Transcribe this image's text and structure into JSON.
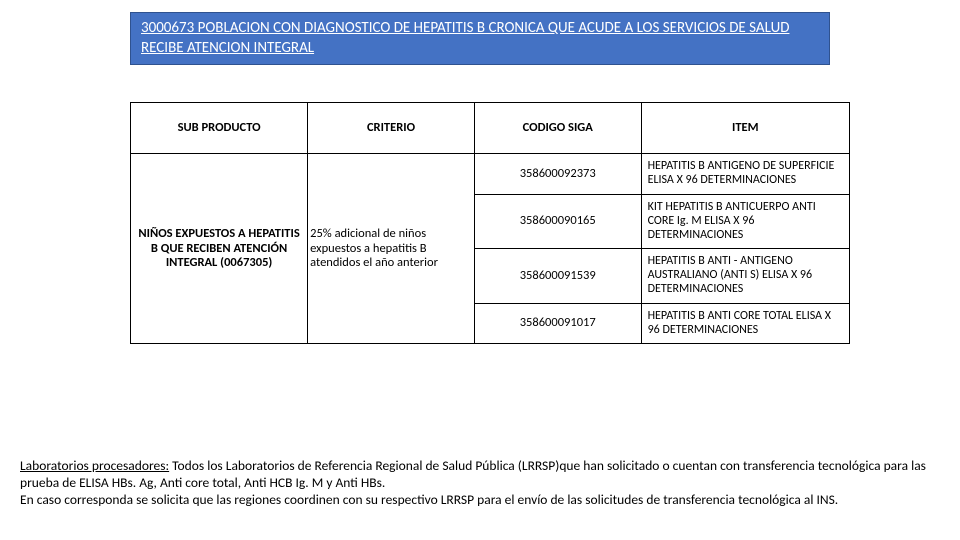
{
  "header": {
    "text": "3000673 POBLACION CON DIAGNOSTICO DE HEPATITIS B CRONICA QUE ACUDE A LOS SERVICIOS DE SALUD RECIBE ATENCION INTEGRAL",
    "background_color": "#4472c4",
    "text_color": "#ffffff"
  },
  "table": {
    "columns": [
      "SUB PRODUCTO",
      "CRITERIO",
      "CODIGO SIGA",
      "ITEM"
    ],
    "sub_producto": "NIÑOS EXPUESTOS A HEPATITIS B QUE RECIBEN ATENCIÓN INTEGRAL (0067305)",
    "criterio": "25% adicional de niños expuestos a hepatitis B atendidos el año anterior",
    "rows": [
      {
        "codigo": "358600092373",
        "item": "HEPATITIS B ANTIGENO DE SUPERFICIE ELISA X 96 DETERMINACIONES"
      },
      {
        "codigo": "358600090165",
        "item": "KIT HEPATITIS B ANTICUERPO ANTI CORE Ig. M ELISA X 96 DETERMINACIONES"
      },
      {
        "codigo": "358600091539",
        "item": "HEPATITIS B ANTI - ANTIGENO AUSTRALIANO (ANTI S) ELISA X 96 DETERMINACIONES"
      },
      {
        "codigo": "358600091017",
        "item": "HEPATITIS B ANTI CORE TOTAL ELISA X 96 DETERMINACIONES"
      }
    ],
    "border_color": "#000000",
    "header_font_weight": "bold"
  },
  "footer": {
    "label": "Laboratorios procesadores:",
    "text": " Todos los Laboratorios de Referencia Regional de Salud Pública (LRRSP)que han solicitado o cuentan con transferencia tecnológica para las prueba de ELISA HBs. Ag, Anti core total, Anti HCB Ig. M y Anti HBs.\nEn caso corresponda se solicita que las regiones coordinen con su respectivo LRRSP para el envío de las solicitudes de transferencia tecnológica al INS."
  }
}
